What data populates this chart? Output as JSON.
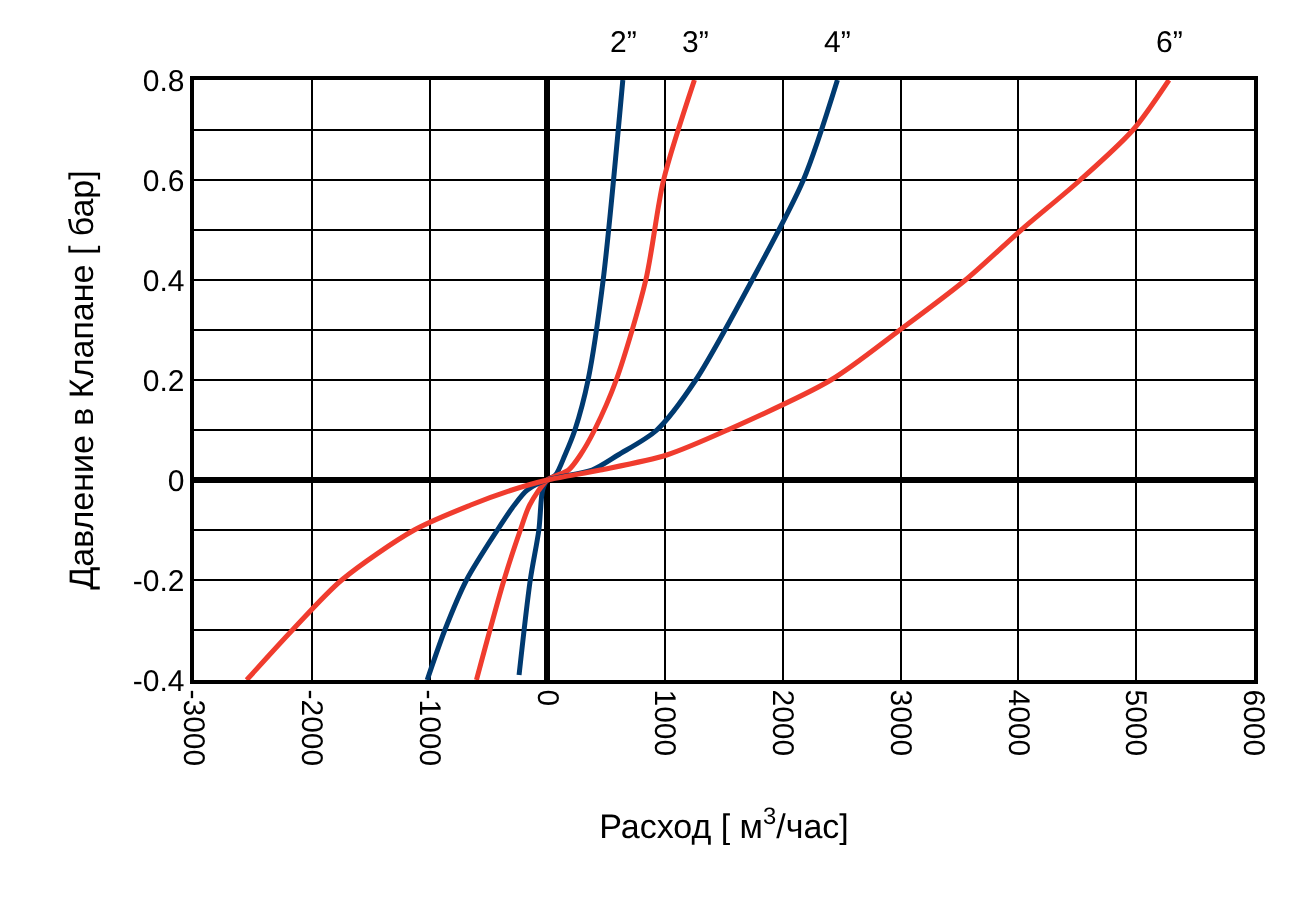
{
  "chart_data": {
    "type": "line",
    "xlabel": "Расход [ м$^{3}$/час]",
    "ylabel": "Давление в Клапане [ бар]",
    "xlim": [
      -3000,
      6000
    ],
    "xticks": [
      -3000,
      -2000,
      -1000,
      0,
      1000,
      2000,
      3000,
      4000,
      5000,
      6000
    ],
    "ylim": [
      -0.4,
      0.8
    ],
    "yticks": [
      -0.4,
      {
        "value": -0.3,
        "label": null
      },
      -0.2,
      {
        "value": -0.1,
        "label": null
      },
      0,
      {
        "value": 0.1,
        "label": null
      },
      0.2,
      {
        "value": 0.3,
        "label": null
      },
      0.4,
      {
        "value": 0.5,
        "label": null
      },
      0.6,
      {
        "value": 0.7,
        "label": null
      },
      0.8
    ],
    "grid": true,
    "legend": false,
    "marker": "none",
    "line_style": "solid",
    "series": [
      {
        "name": "2”",
        "color": "#003a70",
        "x": [
          -240,
          -145,
          -72,
          -40,
          0,
          70,
          150,
          234,
          346,
          474,
          641
        ],
        "values": [
          -0.39,
          -0.2,
          -0.1,
          -0.02,
          0,
          0.01,
          0.05,
          0.1,
          0.2,
          0.4,
          0.8
        ]
      },
      {
        "name": "3”",
        "color": "#f03c2e",
        "x": [
          -602,
          -368,
          -229,
          -150,
          0,
          180,
          280,
          401,
          585,
          836,
          987,
          1249
        ],
        "values": [
          -0.4,
          -0.2,
          -0.1,
          -0.05,
          0,
          0.02,
          0.05,
          0.1,
          0.2,
          0.4,
          0.6,
          0.8
        ]
      },
      {
        "name": "4”",
        "color": "#003a70",
        "x": [
          -1020,
          -870,
          -686,
          -424,
          -280,
          -170,
          0,
          380,
          600,
          930,
          1260,
          1739,
          2174,
          2463
        ],
        "values": [
          -0.4,
          -0.3,
          -0.2,
          -0.1,
          -0.05,
          -0.02,
          0,
          0.02,
          0.05,
          0.1,
          0.2,
          0.4,
          0.6,
          0.8
        ]
      },
      {
        "name": "6”",
        "color": "#f03c2e",
        "x": [
          -2553,
          -2164,
          -1746,
          -1130,
          -650,
          -300,
          0,
          450,
          1014,
          1530,
          2408,
          2993,
          3550,
          4023,
          4525,
          4972,
          5278
        ],
        "values": [
          -0.4,
          -0.3,
          -0.2,
          -0.1,
          -0.05,
          -0.02,
          0,
          0.02,
          0.05,
          0.1,
          0.2,
          0.3,
          0.4,
          0.5,
          0.6,
          0.7,
          0.8
        ]
      }
    ]
  }
}
